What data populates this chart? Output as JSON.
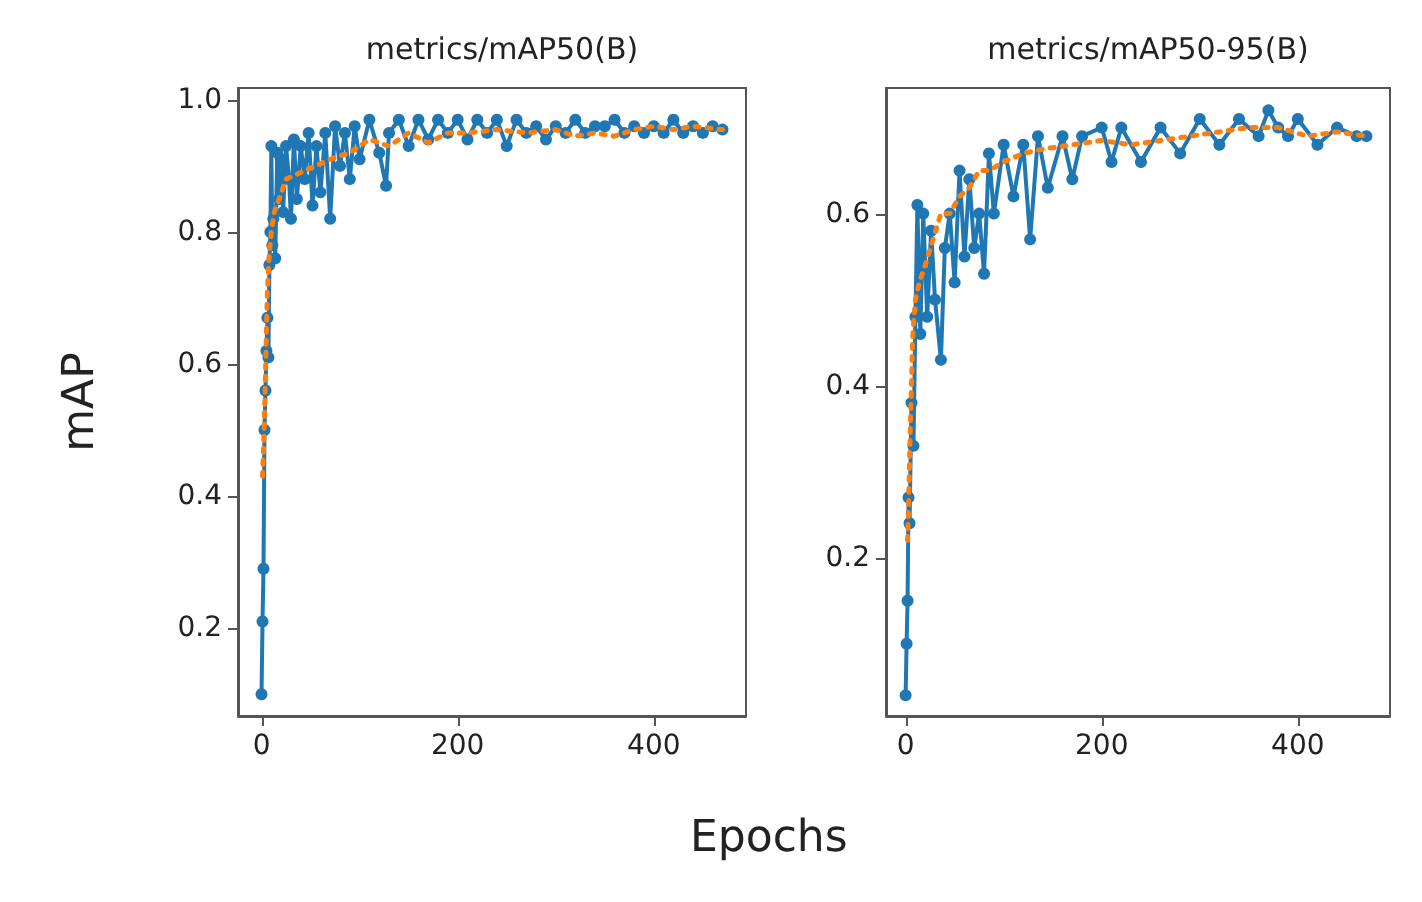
{
  "chart_data": [
    {
      "type": "line",
      "title": "metrics/mAP50(B)",
      "ylabel": "mAP",
      "xlabel": "Epochs",
      "xlim": [
        -24,
        494
      ],
      "ylim": [
        0.067,
        1.018
      ],
      "xticks": [
        0,
        200,
        400
      ],
      "yticks": [
        {
          "value": 0.2,
          "label": "0.2"
        },
        {
          "value": 0.4,
          "label": "0.4"
        },
        {
          "value": 0.6,
          "label": "0.6"
        },
        {
          "value": 0.8,
          "label": "0.8"
        },
        {
          "value": 1.0,
          "label": "1.0"
        }
      ],
      "series": [
        {
          "color": "#1f77b4",
          "marker": "circle",
          "line_style": "solid",
          "x": [
            0,
            1,
            2,
            3,
            4,
            5,
            6,
            7,
            8,
            9,
            10,
            11,
            12,
            14,
            16,
            18,
            20,
            22,
            25,
            28,
            30,
            33,
            36,
            40,
            44,
            48,
            52,
            56,
            60,
            65,
            70,
            75,
            80,
            85,
            90,
            95,
            100,
            110,
            120,
            127,
            130,
            140,
            150,
            160,
            170,
            180,
            190,
            200,
            210,
            220,
            230,
            240,
            250,
            260,
            270,
            280,
            290,
            300,
            310,
            320,
            330,
            340,
            350,
            360,
            370,
            380,
            390,
            400,
            410,
            420,
            430,
            440,
            450,
            460,
            470
          ],
          "values": [
            0.1,
            0.21,
            0.29,
            0.5,
            0.56,
            0.62,
            0.67,
            0.61,
            0.75,
            0.8,
            0.93,
            0.78,
            0.82,
            0.76,
            0.92,
            0.85,
            0.91,
            0.83,
            0.93,
            0.88,
            0.82,
            0.94,
            0.85,
            0.93,
            0.88,
            0.95,
            0.84,
            0.93,
            0.86,
            0.95,
            0.82,
            0.96,
            0.9,
            0.95,
            0.88,
            0.96,
            0.91,
            0.97,
            0.92,
            0.87,
            0.95,
            0.97,
            0.93,
            0.97,
            0.94,
            0.97,
            0.95,
            0.97,
            0.94,
            0.97,
            0.95,
            0.97,
            0.93,
            0.97,
            0.95,
            0.96,
            0.94,
            0.96,
            0.95,
            0.97,
            0.95,
            0.96,
            0.96,
            0.97,
            0.95,
            0.96,
            0.95,
            0.96,
            0.95,
            0.97,
            0.95,
            0.96,
            0.95,
            0.96,
            0.955
          ]
        },
        {
          "color": "#ff7f0e",
          "marker": "none",
          "line_style": "dotted",
          "x": [
            1,
            2,
            3,
            4,
            5,
            6,
            8,
            10,
            13,
            18,
            25,
            40,
            55,
            70,
            90,
            110,
            130,
            150,
            170,
            190,
            210,
            240,
            270,
            300,
            320,
            340,
            360,
            380,
            400,
            420,
            440,
            470
          ],
          "values": [
            0.43,
            0.47,
            0.52,
            0.58,
            0.65,
            0.71,
            0.77,
            0.8,
            0.83,
            0.85,
            0.88,
            0.89,
            0.9,
            0.91,
            0.92,
            0.94,
            0.93,
            0.95,
            0.935,
            0.95,
            0.95,
            0.955,
            0.95,
            0.955,
            0.945,
            0.95,
            0.945,
            0.955,
            0.96,
            0.955,
            0.96,
            0.955
          ]
        }
      ]
    },
    {
      "type": "line",
      "title": "metrics/mAP50-95(B)",
      "xlim": [
        -20,
        494
      ],
      "ylim": [
        0.016,
        0.746
      ],
      "xticks": [
        0,
        200,
        400
      ],
      "yticks": [
        {
          "value": 0.2,
          "label": "0.2"
        },
        {
          "value": 0.4,
          "label": "0.4"
        },
        {
          "value": 0.6,
          "label": "0.6"
        }
      ],
      "series": [
        {
          "color": "#1f77b4",
          "marker": "circle",
          "line_style": "solid",
          "x": [
            0,
            1,
            2,
            3,
            4,
            6,
            8,
            10,
            12,
            15,
            18,
            22,
            26,
            30,
            36,
            40,
            45,
            50,
            55,
            60,
            65,
            70,
            75,
            80,
            85,
            90,
            100,
            110,
            120,
            127,
            135,
            145,
            160,
            170,
            180,
            200,
            210,
            220,
            240,
            260,
            280,
            300,
            320,
            340,
            360,
            370,
            380,
            390,
            400,
            420,
            440,
            460,
            470
          ],
          "values": [
            0.04,
            0.1,
            0.15,
            0.27,
            0.24,
            0.38,
            0.33,
            0.48,
            0.61,
            0.46,
            0.6,
            0.48,
            0.58,
            0.5,
            0.43,
            0.56,
            0.6,
            0.52,
            0.65,
            0.55,
            0.64,
            0.56,
            0.6,
            0.53,
            0.67,
            0.6,
            0.68,
            0.62,
            0.68,
            0.57,
            0.69,
            0.63,
            0.69,
            0.64,
            0.69,
            0.7,
            0.66,
            0.7,
            0.66,
            0.7,
            0.67,
            0.71,
            0.68,
            0.71,
            0.69,
            0.72,
            0.7,
            0.69,
            0.71,
            0.68,
            0.7,
            0.69,
            0.69
          ]
        },
        {
          "color": "#ff7f0e",
          "marker": "none",
          "line_style": "dotted",
          "x": [
            2,
            3,
            4,
            5,
            6,
            7,
            8,
            10,
            14,
            20,
            28,
            36,
            45,
            55,
            65,
            75,
            85,
            100,
            120,
            140,
            170,
            200,
            230,
            260,
            290,
            320,
            350,
            380,
            410,
            440,
            470
          ],
          "values": [
            0.22,
            0.26,
            0.31,
            0.36,
            0.4,
            0.45,
            0.47,
            0.5,
            0.52,
            0.54,
            0.57,
            0.6,
            0.6,
            0.62,
            0.63,
            0.65,
            0.65,
            0.66,
            0.67,
            0.675,
            0.68,
            0.685,
            0.68,
            0.685,
            0.69,
            0.695,
            0.7,
            0.7,
            0.69,
            0.695,
            0.69
          ]
        }
      ]
    }
  ]
}
